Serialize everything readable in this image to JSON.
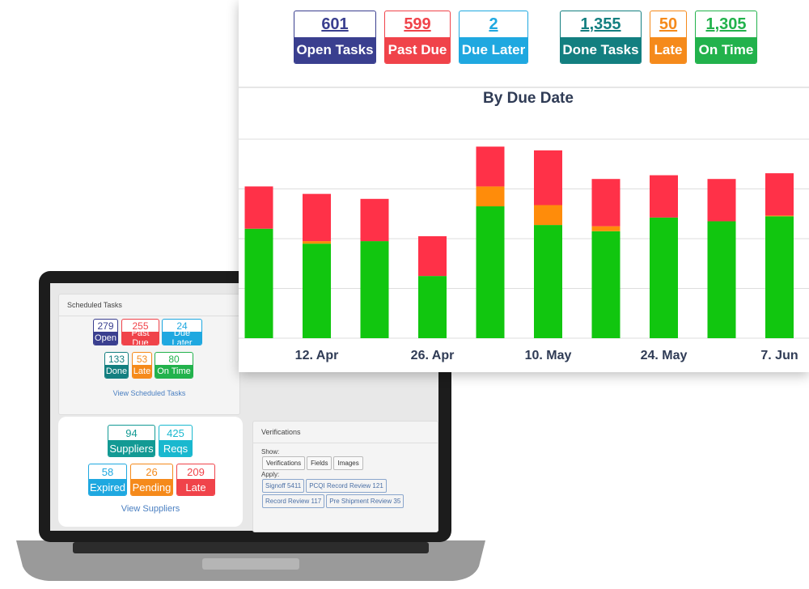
{
  "summary": [
    {
      "value": "601",
      "label": "Open Tasks"
    },
    {
      "value": "599",
      "label": "Past Due"
    },
    {
      "value": "2",
      "label": "Due Later"
    },
    {
      "value": "1,355",
      "label": "Done Tasks"
    },
    {
      "value": "50",
      "label": "Late"
    },
    {
      "value": "1,305",
      "label": "On Time"
    }
  ],
  "chart_data": {
    "type": "bar",
    "stacked": true,
    "title": "By Due Date",
    "categories": [
      null,
      "12. Apr",
      null,
      "26. Apr",
      null,
      "10. May",
      null,
      "24. May",
      null,
      "7. Jun"
    ],
    "series": [
      {
        "color": "#11c60f",
        "values": [
          44,
          38,
          39,
          25,
          53,
          45.5,
          43,
          48.5,
          47,
          49
        ]
      },
      {
        "color": "#ff8c0a",
        "values": [
          0,
          1,
          0,
          0,
          8,
          8,
          2,
          0,
          0,
          0.3
        ]
      },
      {
        "color": "#ff3148",
        "values": [
          17,
          19,
          17,
          16,
          16,
          22,
          19,
          17,
          17,
          17
        ]
      }
    ],
    "ylim": [
      0,
      80
    ],
    "yticks": [
      0,
      20,
      40,
      60,
      80
    ],
    "grid": true
  },
  "scheduled_tasks": {
    "title": "Scheduled Tasks",
    "badges": [
      {
        "value": "279",
        "label": "Open"
      },
      {
        "value": "255",
        "label": "Past Due"
      },
      {
        "value": "24",
        "label": "Due Later"
      },
      {
        "value": "133",
        "label": "Done"
      },
      {
        "value": "53",
        "label": "Late"
      },
      {
        "value": "80",
        "label": "On Time"
      }
    ],
    "link": "View Scheduled Tasks"
  },
  "suppliers": {
    "badges": [
      {
        "value": "94",
        "label": "Suppliers"
      },
      {
        "value": "425",
        "label": "Reqs"
      },
      {
        "value": "58",
        "label": "Expired"
      },
      {
        "value": "26",
        "label": "Pending"
      },
      {
        "value": "209",
        "label": "Late"
      }
    ],
    "link": "View Suppliers"
  },
  "verifications": {
    "title": "Verifications",
    "show_label": "Show:",
    "show_buttons": [
      "Verifications",
      "Fields",
      "Images"
    ],
    "apply_label": "Apply:",
    "apply_tags": [
      "Signoff 5411",
      "PCQI Record Review 121",
      "Record Review 117",
      "Pre Shipment Review 35"
    ]
  }
}
